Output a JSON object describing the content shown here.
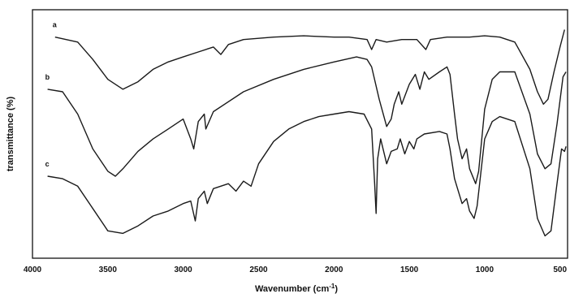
{
  "chart_data": {
    "type": "line",
    "xlabel": "Wavenumber (cm",
    "xlabel_sup": "-1",
    "xlabel_close": ")",
    "ylabel": "transmittance (%)",
    "xlim": [
      4000,
      450
    ],
    "x_reversed": true,
    "ylim": [
      0,
      100
    ],
    "x_ticks": [
      {
        "value": 4000,
        "label": "4000"
      },
      {
        "value": 3500,
        "label": "3500"
      },
      {
        "value": 3000,
        "label": "3000"
      },
      {
        "value": 2500,
        "label": "2500"
      },
      {
        "value": 2000,
        "label": "2000"
      },
      {
        "value": 1500,
        "label": "1500"
      },
      {
        "value": 1000,
        "label": "1000"
      },
      {
        "value": 500,
        "label": "500"
      }
    ],
    "series": [
      {
        "name": "a",
        "points": [
          [
            3850,
            89
          ],
          [
            3700,
            87
          ],
          [
            3600,
            80
          ],
          [
            3500,
            72
          ],
          [
            3400,
            68
          ],
          [
            3300,
            71
          ],
          [
            3200,
            76
          ],
          [
            3100,
            79
          ],
          [
            3000,
            81
          ],
          [
            2900,
            83
          ],
          [
            2800,
            85
          ],
          [
            2750,
            82
          ],
          [
            2700,
            86
          ],
          [
            2600,
            88
          ],
          [
            2400,
            89
          ],
          [
            2200,
            89.5
          ],
          [
            2000,
            89
          ],
          [
            1900,
            89
          ],
          [
            1780,
            88
          ],
          [
            1750,
            84
          ],
          [
            1720,
            88
          ],
          [
            1650,
            87
          ],
          [
            1550,
            88
          ],
          [
            1450,
            88
          ],
          [
            1390,
            84
          ],
          [
            1360,
            88
          ],
          [
            1250,
            89
          ],
          [
            1100,
            89
          ],
          [
            1000,
            89.5
          ],
          [
            900,
            89
          ],
          [
            800,
            87
          ],
          [
            700,
            76
          ],
          [
            650,
            67
          ],
          [
            610,
            62
          ],
          [
            580,
            64
          ],
          [
            540,
            75
          ],
          [
            500,
            85
          ],
          [
            470,
            92
          ]
        ]
      },
      {
        "name": "b",
        "points": [
          [
            3900,
            68
          ],
          [
            3800,
            67
          ],
          [
            3700,
            58
          ],
          [
            3600,
            44
          ],
          [
            3500,
            35
          ],
          [
            3450,
            33
          ],
          [
            3400,
            36
          ],
          [
            3300,
            43
          ],
          [
            3200,
            48
          ],
          [
            3100,
            52
          ],
          [
            3000,
            56
          ],
          [
            2950,
            48
          ],
          [
            2930,
            44
          ],
          [
            2900,
            55
          ],
          [
            2860,
            58
          ],
          [
            2850,
            52
          ],
          [
            2800,
            59
          ],
          [
            2600,
            67
          ],
          [
            2400,
            72
          ],
          [
            2200,
            76
          ],
          [
            2000,
            79
          ],
          [
            1850,
            81
          ],
          [
            1780,
            80
          ],
          [
            1750,
            77
          ],
          [
            1700,
            64
          ],
          [
            1650,
            53
          ],
          [
            1620,
            56
          ],
          [
            1600,
            62
          ],
          [
            1570,
            67
          ],
          [
            1550,
            62
          ],
          [
            1500,
            70
          ],
          [
            1460,
            74
          ],
          [
            1430,
            68
          ],
          [
            1400,
            75
          ],
          [
            1370,
            72
          ],
          [
            1300,
            75
          ],
          [
            1250,
            77
          ],
          [
            1230,
            74
          ],
          [
            1200,
            58
          ],
          [
            1180,
            48
          ],
          [
            1150,
            40
          ],
          [
            1120,
            44
          ],
          [
            1100,
            36
          ],
          [
            1060,
            30
          ],
          [
            1040,
            35
          ],
          [
            1000,
            60
          ],
          [
            950,
            72
          ],
          [
            900,
            75
          ],
          [
            800,
            75
          ],
          [
            700,
            58
          ],
          [
            650,
            42
          ],
          [
            600,
            36
          ],
          [
            560,
            38
          ],
          [
            520,
            54
          ],
          [
            480,
            73
          ],
          [
            460,
            75
          ]
        ]
      },
      {
        "name": "c",
        "points": [
          [
            3900,
            33
          ],
          [
            3800,
            32
          ],
          [
            3700,
            29
          ],
          [
            3600,
            20
          ],
          [
            3500,
            11
          ],
          [
            3400,
            10
          ],
          [
            3300,
            13
          ],
          [
            3200,
            17
          ],
          [
            3100,
            19
          ],
          [
            3000,
            22
          ],
          [
            2950,
            23
          ],
          [
            2920,
            15
          ],
          [
            2900,
            24
          ],
          [
            2860,
            27
          ],
          [
            2840,
            22
          ],
          [
            2800,
            28
          ],
          [
            2700,
            30
          ],
          [
            2650,
            27
          ],
          [
            2600,
            31
          ],
          [
            2550,
            29
          ],
          [
            2500,
            38
          ],
          [
            2400,
            47
          ],
          [
            2300,
            52
          ],
          [
            2200,
            55
          ],
          [
            2100,
            57
          ],
          [
            2000,
            58
          ],
          [
            1900,
            59
          ],
          [
            1800,
            58
          ],
          [
            1750,
            52
          ],
          [
            1730,
            30
          ],
          [
            1720,
            18
          ],
          [
            1710,
            40
          ],
          [
            1690,
            48
          ],
          [
            1650,
            38
          ],
          [
            1620,
            43
          ],
          [
            1580,
            44
          ],
          [
            1560,
            48
          ],
          [
            1530,
            42
          ],
          [
            1500,
            47
          ],
          [
            1470,
            44
          ],
          [
            1450,
            48
          ],
          [
            1400,
            50
          ],
          [
            1300,
            51
          ],
          [
            1250,
            50
          ],
          [
            1230,
            44
          ],
          [
            1200,
            32
          ],
          [
            1180,
            28
          ],
          [
            1150,
            22
          ],
          [
            1120,
            24
          ],
          [
            1100,
            19
          ],
          [
            1070,
            16
          ],
          [
            1050,
            21
          ],
          [
            1000,
            48
          ],
          [
            950,
            55
          ],
          [
            900,
            57
          ],
          [
            800,
            55
          ],
          [
            700,
            36
          ],
          [
            650,
            16
          ],
          [
            600,
            9
          ],
          [
            560,
            11
          ],
          [
            520,
            30
          ],
          [
            490,
            44
          ],
          [
            470,
            43
          ],
          [
            460,
            45
          ]
        ]
      }
    ]
  }
}
